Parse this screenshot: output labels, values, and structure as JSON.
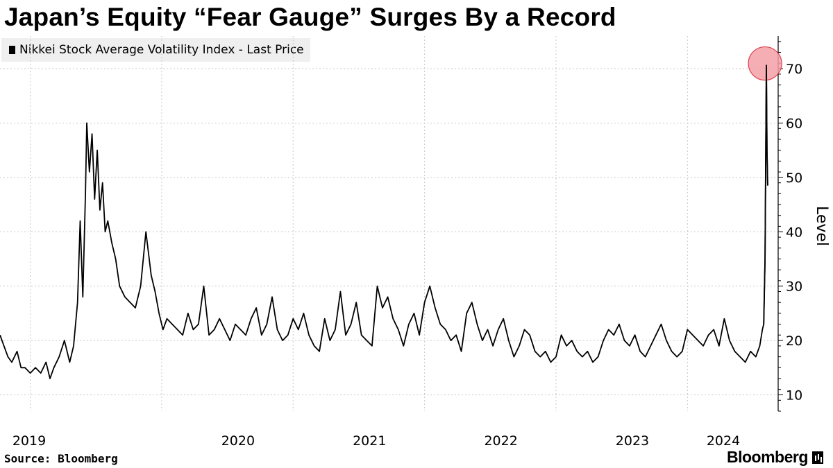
{
  "title": "Japan’s Equity “Fear Gauge” Surges By a Record",
  "legend": {
    "label": "Nikkei Stock Average Volatility Index - Last Price"
  },
  "footer": {
    "source": "Source: Bloomberg",
    "brand": "Bloomberg"
  },
  "colors": {
    "line": "#000000",
    "grid": "#c8c8c8",
    "highlight_fill": "#f4a0a8",
    "highlight_stroke": "#e0404f"
  },
  "chart_data": {
    "type": "line",
    "title": "Japan’s Equity “Fear Gauge” Surges By a Record",
    "ylabel": "Level",
    "xlabel": "",
    "ylim": [
      7,
      76
    ],
    "xlim": [
      2018.77,
      2024.69
    ],
    "y_ticks": [
      10,
      20,
      30,
      40,
      50,
      60,
      70
    ],
    "x_ticks": [
      {
        "label": "2019",
        "value": 2019.0
      },
      {
        "label": "2020",
        "value": 2020.0
      },
      {
        "label": "2021",
        "value": 2021.0
      },
      {
        "label": "2022",
        "value": 2022.0
      },
      {
        "label": "2023",
        "value": 2023.0
      },
      {
        "label": "2024",
        "value": 2024.0
      }
    ],
    "grid": true,
    "legend_position": "top-left",
    "highlight": {
      "x": 2024.59,
      "y": 70.7,
      "note": "record surge marked with circle"
    },
    "series": [
      {
        "name": "Nikkei Stock Average Volatility Index - Last Price",
        "x": [
          2018.77,
          2018.8,
          2018.83,
          2018.86,
          2018.9,
          2018.93,
          2018.96,
          2019.0,
          2019.04,
          2019.08,
          2019.12,
          2019.15,
          2019.18,
          2019.22,
          2019.26,
          2019.3,
          2019.33,
          2019.36,
          2019.38,
          2019.4,
          2019.42,
          2019.43,
          2019.45,
          2019.47,
          2019.49,
          2019.51,
          2019.53,
          2019.55,
          2019.57,
          2019.59,
          2019.62,
          2019.65,
          2019.68,
          2019.72,
          2019.76,
          2019.8,
          2019.84,
          2019.88,
          2019.92,
          2019.95,
          2019.98,
          2020.01,
          2020.04,
          2020.08,
          2020.12,
          2020.16,
          2020.2,
          2020.24,
          2020.28,
          2020.32,
          2020.36,
          2020.4,
          2020.44,
          2020.48,
          2020.52,
          2020.56,
          2020.6,
          2020.64,
          2020.68,
          2020.72,
          2020.76,
          2020.8,
          2020.84,
          2020.88,
          2020.92,
          2020.96,
          2021.0,
          2021.04,
          2021.08,
          2021.12,
          2021.16,
          2021.2,
          2021.24,
          2021.28,
          2021.32,
          2021.36,
          2021.4,
          2021.44,
          2021.48,
          2021.52,
          2021.56,
          2021.6,
          2021.64,
          2021.68,
          2021.72,
          2021.76,
          2021.8,
          2021.84,
          2021.88,
          2021.92,
          2021.96,
          2022.0,
          2022.04,
          2022.08,
          2022.12,
          2022.16,
          2022.2,
          2022.24,
          2022.28,
          2022.32,
          2022.36,
          2022.4,
          2022.44,
          2022.48,
          2022.52,
          2022.56,
          2022.6,
          2022.64,
          2022.68,
          2022.72,
          2022.76,
          2022.8,
          2022.84,
          2022.88,
          2022.92,
          2022.96,
          2023.0,
          2023.04,
          2023.08,
          2023.12,
          2023.16,
          2023.2,
          2023.24,
          2023.28,
          2023.32,
          2023.36,
          2023.4,
          2023.44,
          2023.48,
          2023.52,
          2023.56,
          2023.6,
          2023.64,
          2023.68,
          2023.72,
          2023.76,
          2023.8,
          2023.84,
          2023.88,
          2023.92,
          2023.96,
          2024.0,
          2024.04,
          2024.08,
          2024.12,
          2024.16,
          2024.2,
          2024.24,
          2024.28,
          2024.32,
          2024.36,
          2024.4,
          2024.44,
          2024.48,
          2024.52,
          2024.55,
          2024.57,
          2024.58,
          2024.59,
          2024.6,
          2024.605,
          2024.61
        ],
        "y": [
          21,
          19,
          17,
          16,
          18,
          15,
          15,
          14,
          15,
          14,
          16,
          13,
          15,
          17,
          20,
          16,
          19,
          27,
          42,
          28,
          47,
          60,
          51,
          58,
          46,
          55,
          44,
          49,
          40,
          42,
          38,
          35,
          30,
          28,
          27,
          26,
          30,
          40,
          32,
          29,
          25,
          22,
          24,
          23,
          22,
          21,
          25,
          22,
          23,
          30,
          21,
          22,
          24,
          22,
          20,
          23,
          22,
          21,
          24,
          26,
          21,
          23,
          28,
          22,
          20,
          21,
          24,
          22,
          25,
          21,
          19,
          18,
          24,
          20,
          22,
          29,
          21,
          23,
          27,
          21,
          20,
          19,
          30,
          26,
          28,
          24,
          22,
          19,
          23,
          25,
          21,
          27,
          30,
          26,
          23,
          22,
          20,
          21,
          18,
          25,
          27,
          23,
          20,
          22,
          19,
          22,
          24,
          20,
          17,
          19,
          22,
          21,
          18,
          17,
          18,
          16,
          17,
          21,
          19,
          20,
          18,
          17,
          18,
          16,
          17,
          20,
          22,
          21,
          23,
          20,
          19,
          21,
          18,
          17,
          19,
          21,
          23,
          20,
          18,
          17,
          18,
          22,
          21,
          20,
          19,
          21,
          22,
          19,
          24,
          20,
          18,
          17,
          16,
          18,
          17,
          19,
          22,
          23,
          35,
          70.7,
          55,
          48.5
        ]
      }
    ]
  }
}
